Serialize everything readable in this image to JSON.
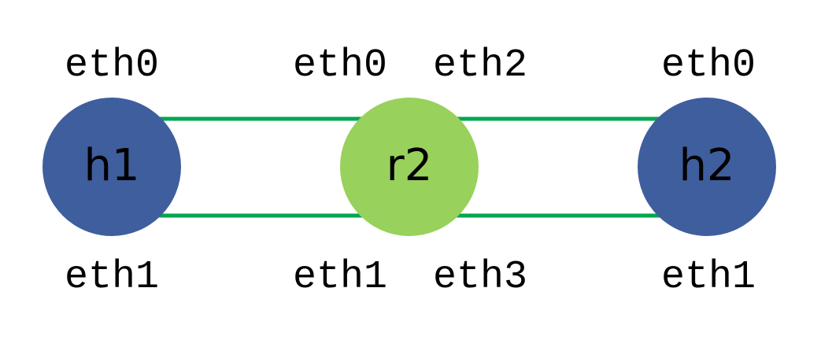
{
  "colors": {
    "host": "#3f5e9e",
    "router": "#98d15b",
    "link": "#00a650",
    "background": "#ffffff"
  },
  "nodes": {
    "h1": {
      "label": "h1",
      "type": "host"
    },
    "r2": {
      "label": "r2",
      "type": "router"
    },
    "h2": {
      "label": "h2",
      "type": "host"
    }
  },
  "interfaces": {
    "h1_top": "eth0",
    "h1_bottom": "eth1",
    "r2_top_left": "eth0",
    "r2_top_right": "eth2",
    "r2_bottom_left": "eth1",
    "r2_bottom_right": "eth3",
    "h2_top": "eth0",
    "h2_bottom": "eth1"
  },
  "links": [
    {
      "from": "h1",
      "from_iface": "eth0",
      "to": "r2",
      "to_iface": "eth0"
    },
    {
      "from": "h1",
      "from_iface": "eth1",
      "to": "r2",
      "to_iface": "eth1"
    },
    {
      "from": "r2",
      "from_iface": "eth2",
      "to": "h2",
      "to_iface": "eth0"
    },
    {
      "from": "r2",
      "from_iface": "eth3",
      "to": "h2",
      "to_iface": "eth1"
    }
  ]
}
